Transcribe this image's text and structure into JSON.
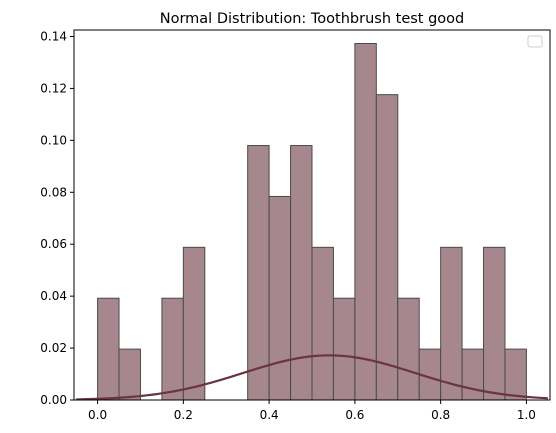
{
  "chart_data": {
    "type": "bar",
    "subtype": "histogram",
    "title": "Normal Distribution: Toothbrush test good",
    "xlabel": "",
    "ylabel": "",
    "xlim": [
      -0.055,
      1.055
    ],
    "ylim": [
      0,
      0.1425
    ],
    "xticks": [
      0.0,
      0.2,
      0.4,
      0.6,
      0.8,
      1.0
    ],
    "xtick_labels": [
      "0.0",
      "0.2",
      "0.4",
      "0.6",
      "0.8",
      "1.0"
    ],
    "yticks": [
      0.0,
      0.02,
      0.04,
      0.06,
      0.08,
      0.1,
      0.12,
      0.14
    ],
    "ytick_labels": [
      "0.00",
      "0.02",
      "0.04",
      "0.06",
      "0.08",
      "0.10",
      "0.12",
      "0.14"
    ],
    "bin_edges": [
      0.0,
      0.05,
      0.1,
      0.15,
      0.2,
      0.25,
      0.3,
      0.35,
      0.4,
      0.45,
      0.5,
      0.55,
      0.6,
      0.65,
      0.7,
      0.75,
      0.8,
      0.85,
      0.9,
      0.95,
      1.0
    ],
    "values": [
      0.0392,
      0.0196,
      0,
      0.0392,
      0.0588,
      0,
      0,
      0.098,
      0.0784,
      0.098,
      0.0588,
      0.0392,
      0.1373,
      0.1176,
      0.0392,
      0.0196,
      0.0588,
      0.0196,
      0.0588,
      0.0196
    ],
    "curve": {
      "type": "normal",
      "x_range": [
        -0.05,
        1.05
      ],
      "mean": 0.54,
      "peak": 0.0172,
      "sigma": 0.2
    },
    "grid": false,
    "legend": "top-right, empty",
    "colors": {
      "bar_fill": "#a5878d",
      "bar_edge": "#4a4a4a",
      "curve": "#6b3344"
    }
  }
}
